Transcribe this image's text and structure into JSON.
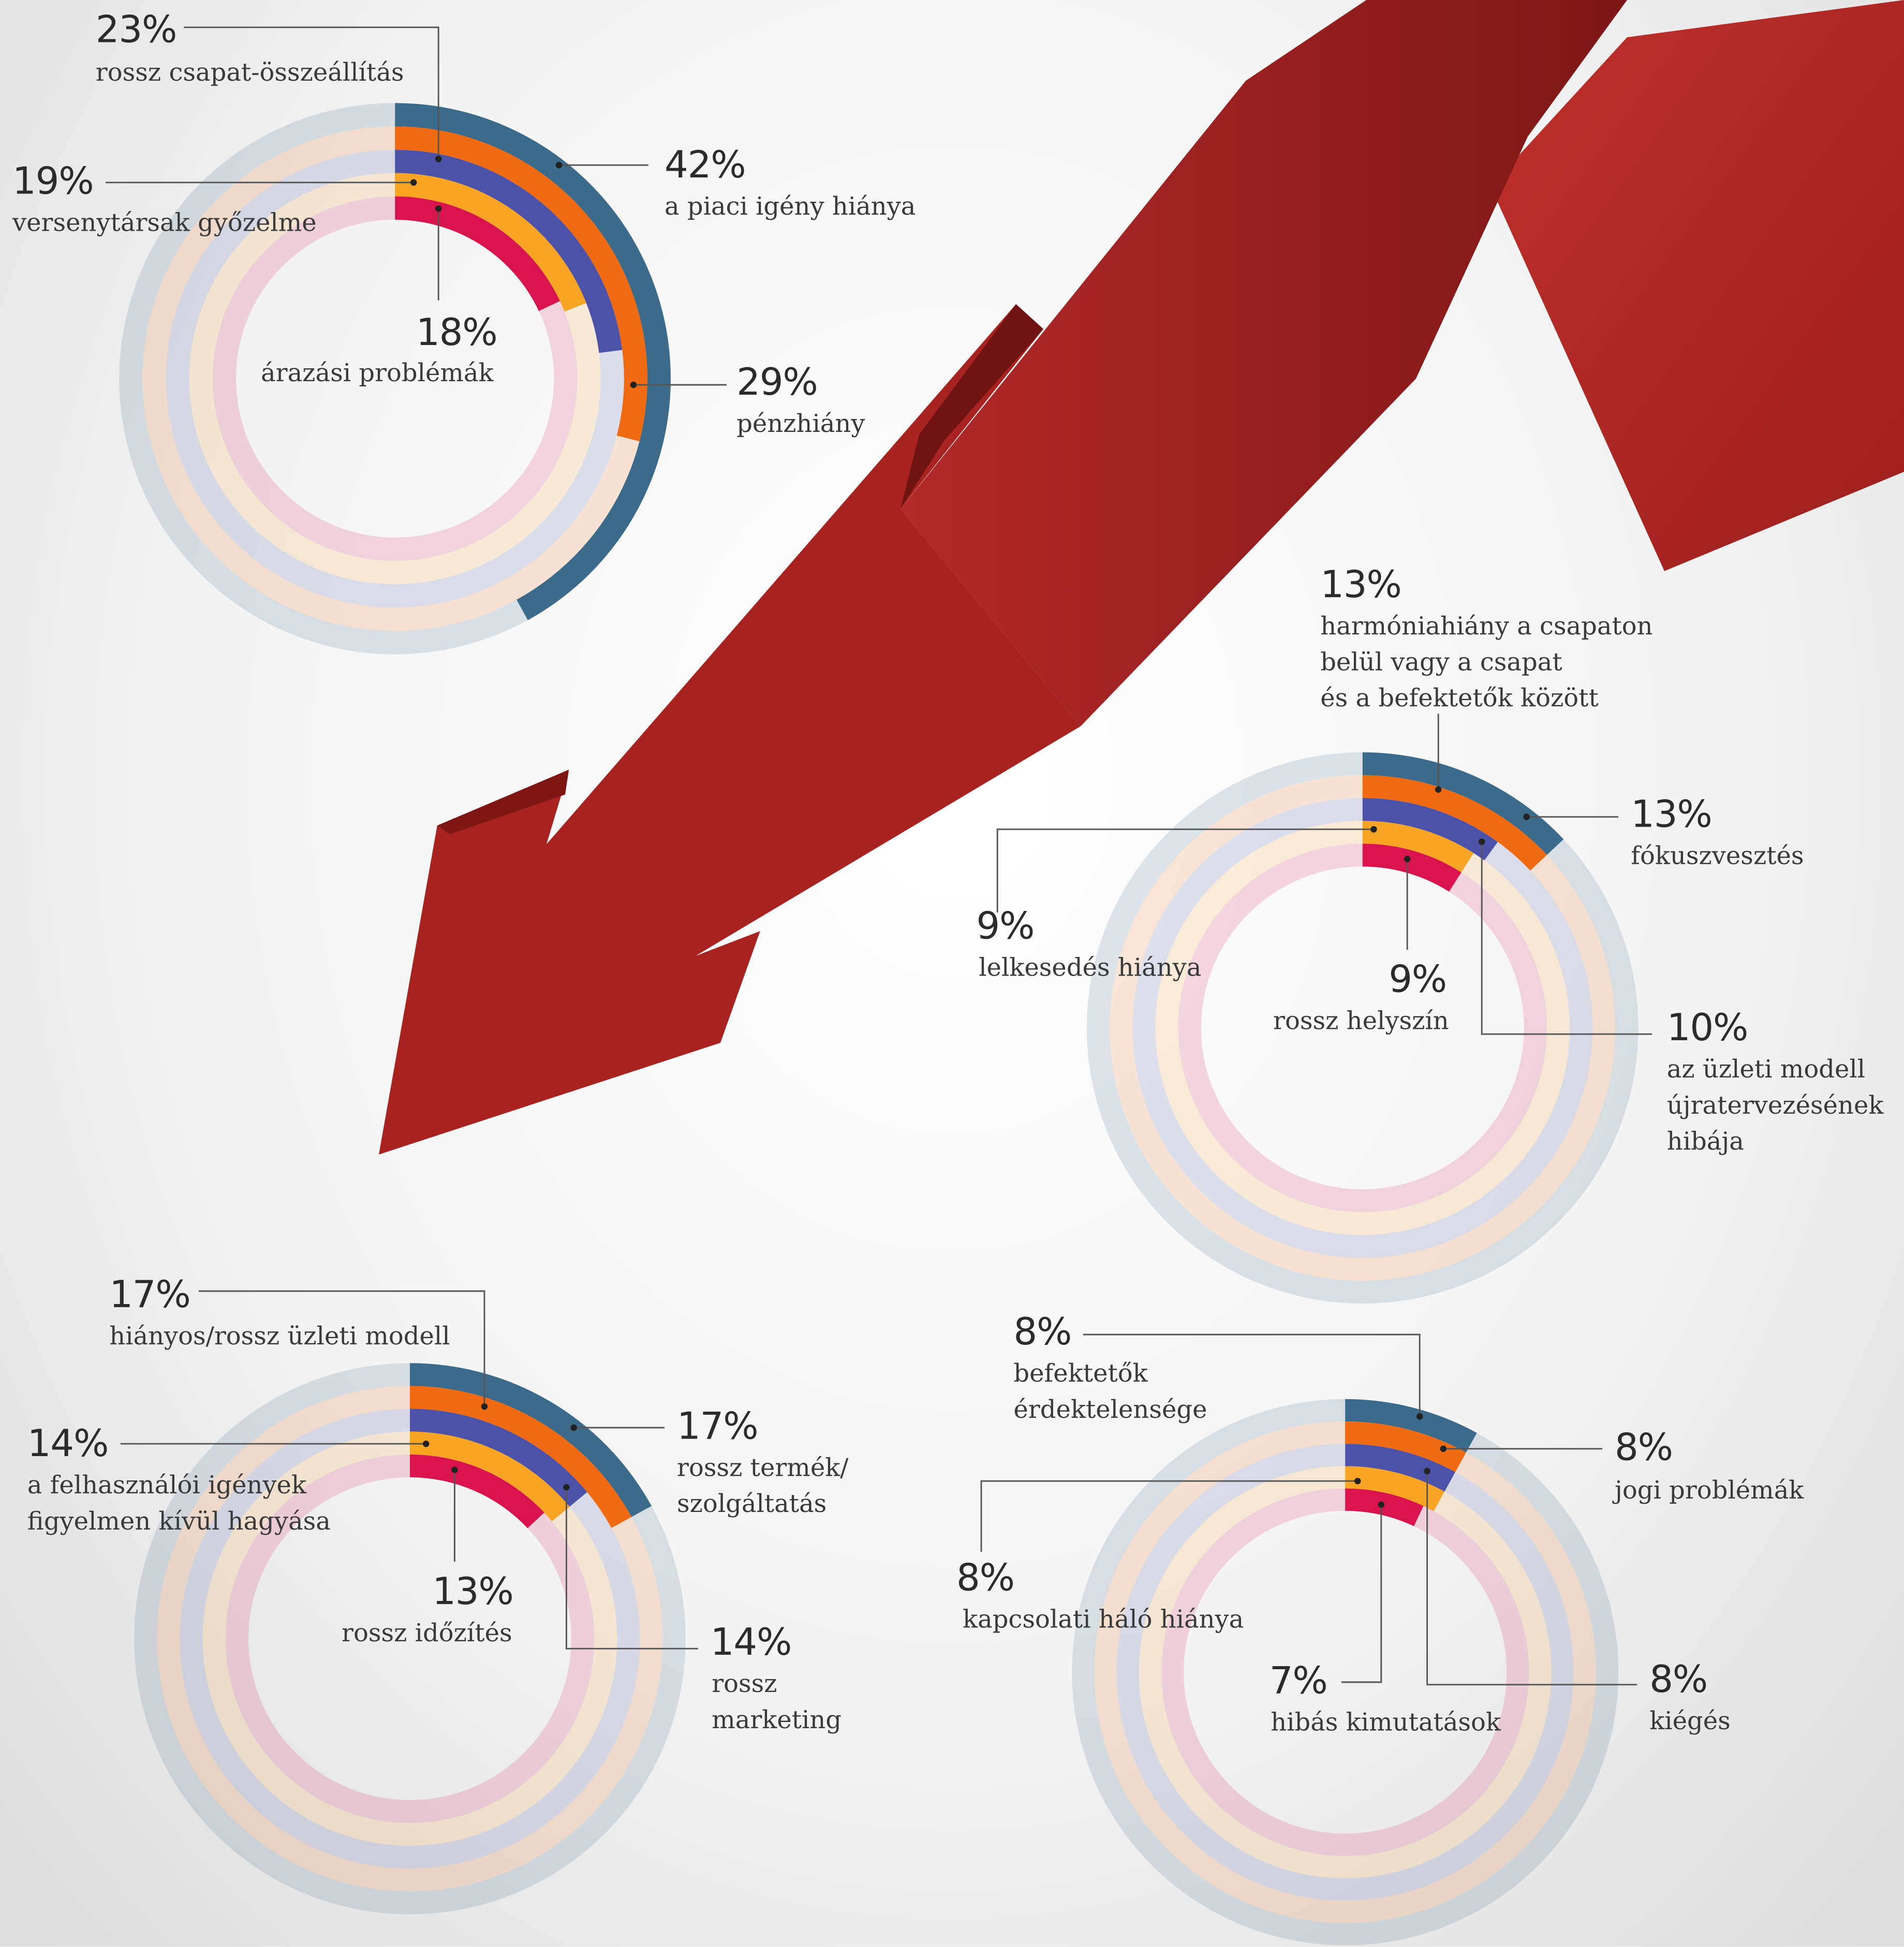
{
  "chart_data": [
    {
      "type": "radial_bar",
      "categories": [
        "a piaci igény hiánya",
        "pénzhiány",
        "rossz csapat-összeállítás",
        "versenytársak győzelme",
        "árazási problémák"
      ],
      "values": [
        42,
        29,
        23,
        19,
        18
      ],
      "value_labels": [
        "42%",
        "29%",
        "23%",
        "19%",
        "18%"
      ],
      "colors": [
        "#3b6a8a",
        "#f06a12",
        "#4c52a8",
        "#f8a424",
        "#d8134e"
      ]
    },
    {
      "type": "radial_bar",
      "categories": [
        "fókuszvesztés",
        "harmóniahiány a csapaton\nbelül vagy a csapat\nés a befektetők között",
        "az üzleti modell\nújratervezésének\nhibája",
        "lelkesedés hiánya",
        "rossz helyszín"
      ],
      "values": [
        13,
        13,
        10,
        9,
        9
      ],
      "value_labels": [
        "13%",
        "13%",
        "10%",
        "9%",
        "9%"
      ],
      "colors": [
        "#3b6a8a",
        "#f06a12",
        "#4c52a8",
        "#f8a424",
        "#d8134e"
      ]
    },
    {
      "type": "radial_bar",
      "categories": [
        "rossz termék/\nszolgáltatás",
        "hiányos/rossz üzleti modell",
        "rossz\nmarketing",
        "a felhasználói igények\nfigyelmen kívül hagyása",
        "rossz időzítés"
      ],
      "values": [
        17,
        17,
        14,
        14,
        13
      ],
      "value_labels": [
        "17%",
        "17%",
        "14%",
        "14%",
        "13%"
      ],
      "colors": [
        "#3b6a8a",
        "#f06a12",
        "#4c52a8",
        "#f8a424",
        "#d8134e"
      ]
    },
    {
      "type": "radial_bar",
      "categories": [
        "befektetők\nérdektelensége",
        "jogi problémák",
        "kiégés",
        "kapcsolati háló hiánya",
        "hibás kimutatások"
      ],
      "values": [
        8,
        8,
        8,
        8,
        7
      ],
      "value_labels": [
        "8%",
        "8%",
        "8%",
        "8%",
        "7%"
      ],
      "colors": [
        "#3b6a8a",
        "#f06a12",
        "#4c52a8",
        "#f8a424",
        "#d8134e"
      ]
    }
  ]
}
